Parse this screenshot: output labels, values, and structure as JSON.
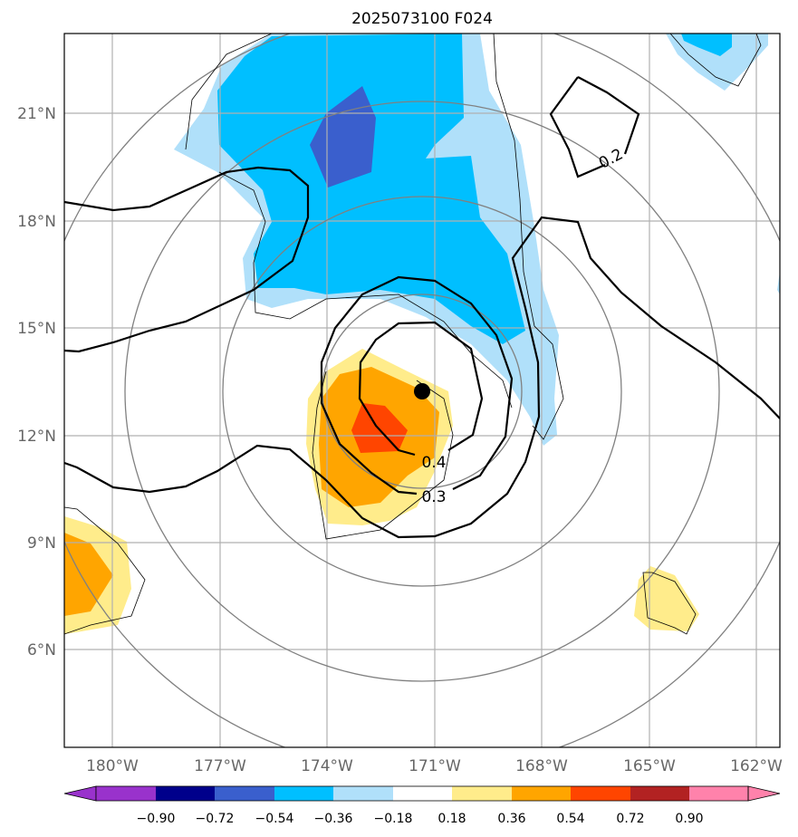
{
  "title": "2025073100 F024",
  "axes": {
    "lon_ticks": [
      "180°W",
      "177°W",
      "174°W",
      "171°W",
      "168°W",
      "165°W",
      "162°W"
    ],
    "lat_ticks": [
      "21°N",
      "18°N",
      "15°N",
      "12°N",
      "9°N",
      "6°N"
    ]
  },
  "contour_labels": [
    "0.2",
    "0.4",
    "0.3"
  ],
  "colorbar": {
    "tick_labels": [
      "−0.90",
      "−0.72",
      "−0.54",
      "−0.36",
      "−0.18",
      "0.18",
      "0.36",
      "0.54",
      "0.72",
      "0.90"
    ],
    "colors": [
      "#9932cc",
      "#00008b",
      "#3a5fcd",
      "#00bfff",
      "#b0e0fa",
      "#ffffff",
      "#ffec8b",
      "#ffa500",
      "#ff4500",
      "#b22222",
      "#ff82ab"
    ]
  },
  "chart_data": {
    "type": "contour-map",
    "lon_range": [
      -181.3,
      -161.3
    ],
    "lat_range": [
      3.2,
      23.2
    ],
    "levels": [
      -0.9,
      -0.72,
      -0.54,
      -0.36,
      -0.18,
      0.18,
      0.36,
      0.54,
      0.72,
      0.9
    ],
    "contour_lines": [
      0.2,
      0.3,
      0.4
    ],
    "storm_center": {
      "lon": -171.3,
      "lat": 13.2
    },
    "grid": true
  },
  "colors": {
    "grid": "#b0b0b0",
    "range_rings": "#808080",
    "contour": "#000000",
    "coast": "#000000"
  }
}
